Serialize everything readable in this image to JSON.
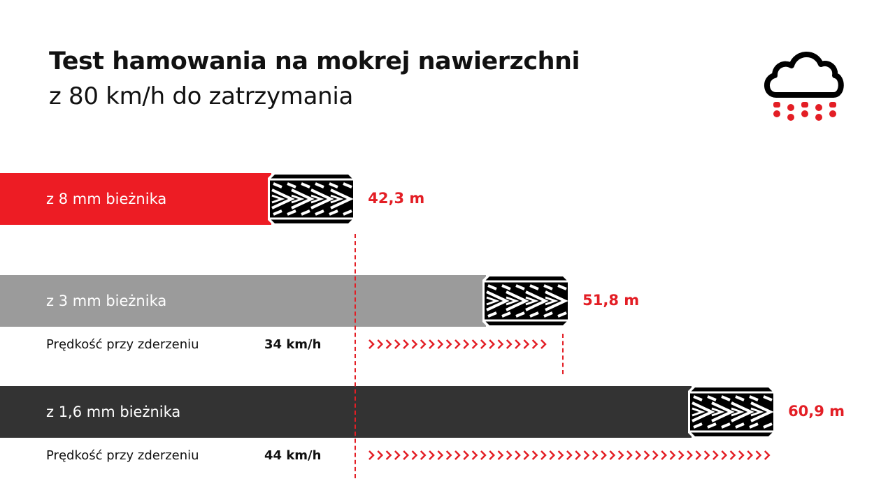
{
  "header": {
    "title": "Test hamowania na mokrej nawierzchni",
    "subtitle": "z 80 km/h do zatrzymania",
    "icon": "rain-cloud-icon"
  },
  "colors": {
    "accent": "#e31e25",
    "bar_8mm": "#ed1c24",
    "bar_3mm": "#9b9b9b",
    "bar_16mm": "#333333",
    "text": "#111111"
  },
  "chart_data": {
    "type": "bar",
    "orientation": "horizontal",
    "unit": "m",
    "categories": [
      "z 8 mm bieżnika",
      "z 3 mm bieżnika",
      "z 1,6 mm bieżnika"
    ],
    "values": [
      42.3,
      51.8,
      60.9
    ],
    "value_labels": [
      "42,3 m",
      "51,8 m",
      "60,9 m"
    ],
    "impact_speed": {
      "label": "Prędkość przy zderzeniu",
      "values": [
        null,
        "34 km/h",
        "44 km/h"
      ]
    }
  }
}
